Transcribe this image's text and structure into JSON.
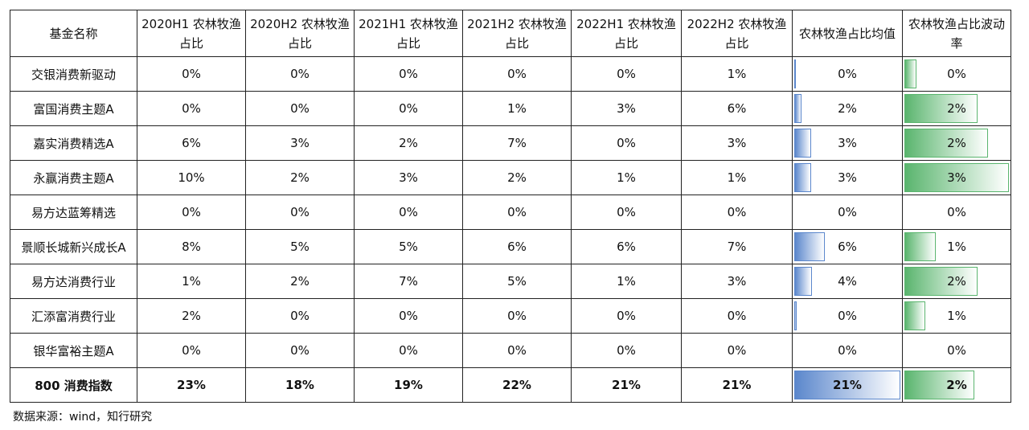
{
  "table": {
    "header": [
      "基金名称",
      "2020H1 农林牧渔占比",
      "2020H2 农林牧渔占比",
      "2021H1 农林牧渔占比",
      "2021H2 农林牧渔占比",
      "2022H1 农林牧渔占比",
      "2022H2 农林牧渔占比",
      "农林牧渔占比均值",
      "农林牧渔占比波动率"
    ],
    "rows": [
      [
        "交银消费新驱动",
        "0%",
        "0%",
        "0%",
        "0%",
        "0%",
        "1%",
        {
          "value": 0.3,
          "label": "0%"
        },
        {
          "value": 0.35,
          "label": "0%"
        }
      ],
      [
        "富国消费主题A",
        "0%",
        "0%",
        "0%",
        "1%",
        "3%",
        "6%",
        {
          "value": 1.5,
          "label": "2%"
        },
        {
          "value": 2.1,
          "label": "2%"
        }
      ],
      [
        "嘉实消费精选A",
        "6%",
        "3%",
        "2%",
        "7%",
        "0%",
        "3%",
        {
          "value": 3.4,
          "label": "3%"
        },
        {
          "value": 2.4,
          "label": "2%"
        }
      ],
      [
        "永赢消费主题A",
        "10%",
        "2%",
        "3%",
        "2%",
        "1%",
        "1%",
        {
          "value": 3.4,
          "label": "3%"
        },
        {
          "value": 3.0,
          "label": "3%"
        }
      ],
      [
        "易方达蓝筹精选",
        "0%",
        "0%",
        "0%",
        "0%",
        "0%",
        "0%",
        {
          "value": 0,
          "label": "0%"
        },
        {
          "value": 0,
          "label": "0%"
        }
      ],
      [
        "景顺长城新兴成长A",
        "8%",
        "5%",
        "5%",
        "6%",
        "6%",
        "7%",
        {
          "value": 6.0,
          "label": "6%"
        },
        {
          "value": 0.9,
          "label": "1%"
        }
      ],
      [
        "易方达消费行业",
        "1%",
        "2%",
        "7%",
        "5%",
        "1%",
        "3%",
        {
          "value": 3.5,
          "label": "4%"
        },
        {
          "value": 2.1,
          "label": "2%"
        }
      ],
      [
        "汇添富消费行业",
        "2%",
        "0%",
        "0%",
        "0%",
        "0%",
        "0%",
        {
          "value": 0.4,
          "label": "0%"
        },
        {
          "value": 0.6,
          "label": "1%"
        }
      ],
      [
        "银华富裕主题A",
        "0%",
        "0%",
        "0%",
        "0%",
        "0%",
        "0%",
        {
          "value": 0,
          "label": "0%"
        },
        {
          "value": 0,
          "label": "0%"
        }
      ],
      [
        "800 消费指数",
        "23%",
        "18%",
        "19%",
        "22%",
        "21%",
        "21%",
        {
          "value": 21,
          "label": "21%"
        },
        {
          "value": 2.0,
          "label": "2%"
        }
      ]
    ]
  },
  "source": "数据来源：wind，知行研究"
}
